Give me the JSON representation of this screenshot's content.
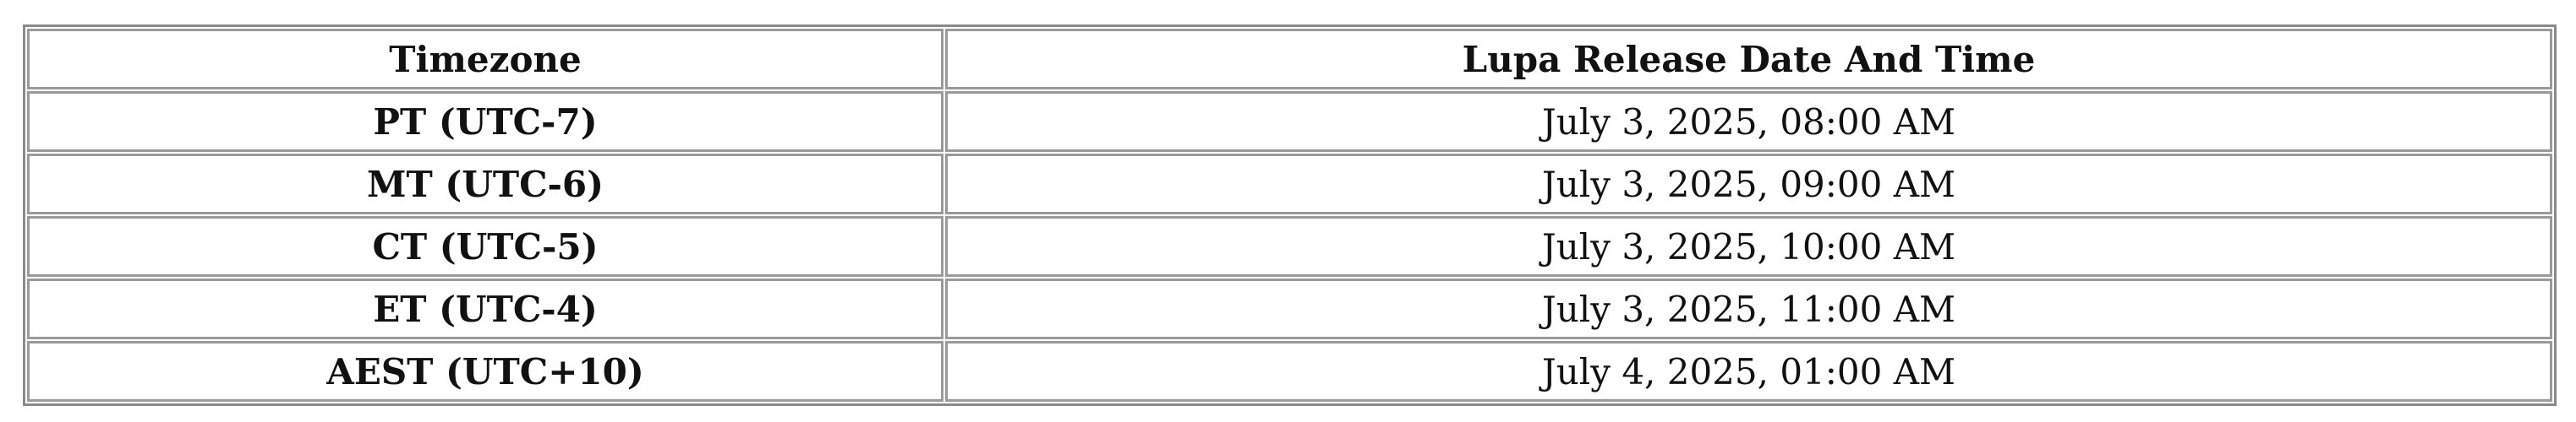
{
  "table": {
    "headers": [
      "Timezone",
      "Lupa Release Date And Time"
    ],
    "rows": [
      [
        "PT (UTC-7)",
        "July 3, 2025, 08:00 AM"
      ],
      [
        "MT (UTC-6)",
        "July 3, 2025, 09:00 AM"
      ],
      [
        "CT (UTC-5)",
        "July 3, 2025, 10:00 AM"
      ],
      [
        "ET (UTC-4)",
        "July 3, 2025, 11:00 AM"
      ],
      [
        "AEST (UTC+10)",
        "July 4, 2025, 01:00 AM"
      ]
    ]
  }
}
